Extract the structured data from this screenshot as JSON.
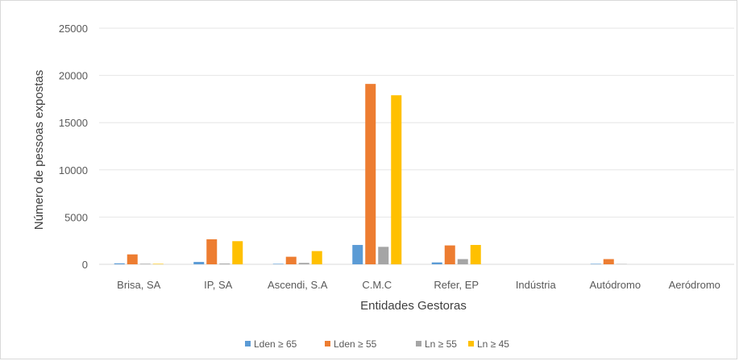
{
  "chart_data": {
    "type": "bar",
    "title": "",
    "xlabel": "Entidades Gestoras",
    "ylabel": "Número de pessoas expostas",
    "ylim": [
      0,
      25000
    ],
    "yticks": [
      0,
      5000,
      10000,
      15000,
      20000,
      25000
    ],
    "grid": true,
    "legend_position": "bottom",
    "categories": [
      "Brisa, SA",
      "IP, SA",
      "Ascendi, S.A",
      "C.M.C",
      "Refer, EP",
      "Indústria",
      "Autódromo",
      "Aeródromo"
    ],
    "series": [
      {
        "name": "Lden ≥ 65",
        "color": "#5b9bd5",
        "values": [
          100,
          250,
          50,
          2050,
          200,
          0,
          50,
          0
        ]
      },
      {
        "name": "Lden ≥ 55",
        "color": "#ed7d31",
        "values": [
          1050,
          2650,
          800,
          19100,
          2000,
          0,
          550,
          0
        ]
      },
      {
        "name": "Ln ≥ 55",
        "color": "#a5a5a5",
        "values": [
          60,
          80,
          150,
          1850,
          550,
          0,
          30,
          0
        ]
      },
      {
        "name": "Ln ≥ 45",
        "color": "#ffc000",
        "values": [
          50,
          2450,
          1400,
          17900,
          2050,
          0,
          0,
          0
        ]
      }
    ]
  }
}
